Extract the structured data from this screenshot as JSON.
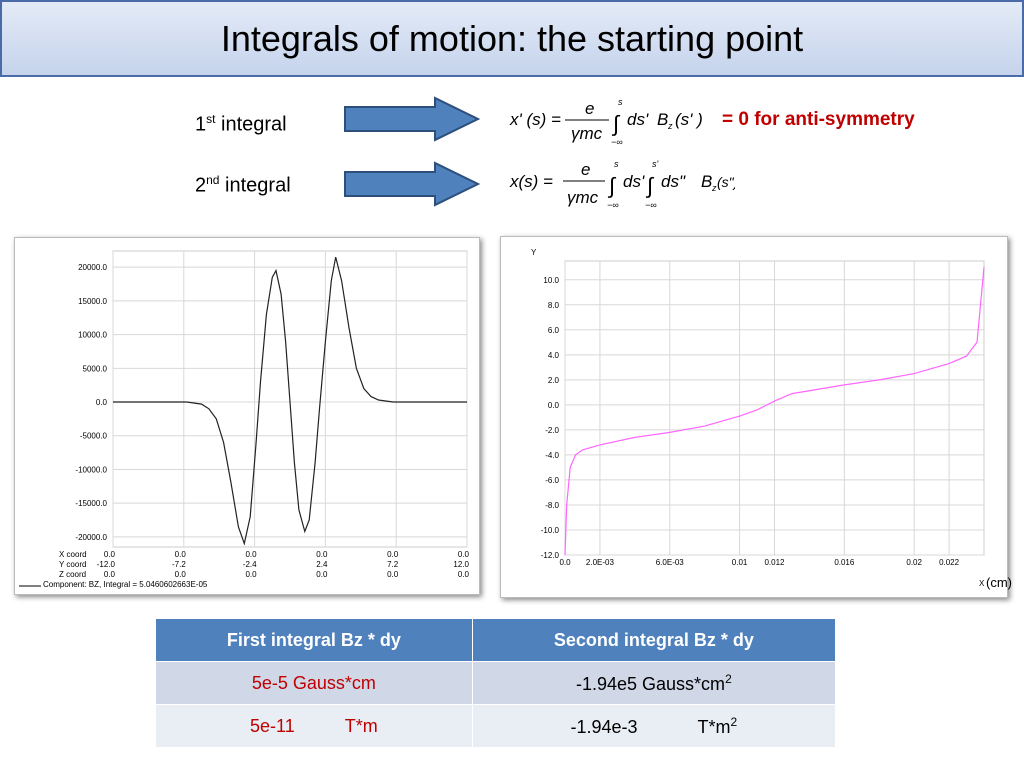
{
  "header": {
    "title": "Integrals of motion: the starting point"
  },
  "integrals": [
    {
      "num": "1",
      "sup": "st",
      "text": " integral"
    },
    {
      "num": "2",
      "sup": "nd",
      "text": " integral"
    }
  ],
  "formulas": [
    {
      "lhs": "x' (s) =",
      "num": "e",
      "den": "γmc",
      "int": "∫",
      "upper": "s",
      "lower": "−∞",
      "diff": "ds'",
      "func": "B",
      "sub": "z",
      "arg": "(s' )"
    },
    {
      "lhs": "x(s) =",
      "num": "e",
      "den": "γmc",
      "int": "∫",
      "upper": "s",
      "lower": "−∞",
      "diff": "ds'",
      "int2": "∫",
      "upper2": "s'",
      "lower2": "−∞",
      "diff2": "ds\"",
      "func": "B",
      "sub": "z",
      "arg": "(s\")"
    }
  ],
  "note": "=  0 for anti-symmetry",
  "chart_data": [
    {
      "type": "line",
      "color": "#222222",
      "grid": true,
      "xlim": [
        -12,
        12
      ],
      "ylim": [
        -21500,
        22400
      ],
      "xticks": [
        {
          "value": -12,
          "label": "-12.0"
        },
        {
          "value": -7.2,
          "label": "-7.2"
        },
        {
          "value": -2.4,
          "label": "-2.4"
        },
        {
          "value": 2.4,
          "label": "2.4"
        },
        {
          "value": 7.2,
          "label": "7.2"
        },
        {
          "value": 12,
          "label": "12.0"
        }
      ],
      "yticks": [
        {
          "value": 20000,
          "label": "20000.0"
        },
        {
          "value": 15000,
          "label": "15000.0"
        },
        {
          "value": 10000,
          "label": "10000.0"
        },
        {
          "value": 5000,
          "label": "5000.0"
        },
        {
          "value": 0,
          "label": "0.0"
        },
        {
          "value": -5000,
          "label": "-5000.0"
        },
        {
          "value": -10000,
          "label": "-10000.0"
        },
        {
          "value": -15000,
          "label": "-15000.0"
        },
        {
          "value": -20000,
          "label": "-20000.0"
        }
      ],
      "x_coord": {
        "label": "X coord",
        "values": [
          "0.0",
          "0.0",
          "0.0",
          "0.0",
          "0.0",
          "0.0"
        ]
      },
      "y_coord_label": "Y coord",
      "z_coord": {
        "label": "Z coord",
        "values": [
          "0.0",
          "0.0",
          "0.0",
          "0.0",
          "0.0",
          "0.0"
        ]
      },
      "caption": "Component: BZ, Integral = 5.0460602663E-05",
      "series": [
        {
          "x": [
            -12,
            -7,
            -6,
            -5.5,
            -5,
            -4.5,
            -4,
            -3.5,
            -3.1,
            -2.7,
            -2.3,
            -2,
            -1.6,
            -1.2,
            -0.95,
            -0.6,
            -0.3,
            0,
            0.3,
            0.6,
            1,
            1.3,
            1.7,
            2,
            2.4,
            2.8,
            3.1,
            3.5,
            4,
            4.5,
            5,
            5.5,
            6,
            7,
            12
          ],
          "values": [
            0,
            0,
            -300,
            -1000,
            -2500,
            -6000,
            -12000,
            -18500,
            -21000,
            -17000,
            -6000,
            3000,
            13000,
            18500,
            19500,
            16000,
            9000,
            0,
            -9000,
            -16000,
            -19200,
            -17500,
            -9000,
            -1000,
            9000,
            18000,
            21500,
            18000,
            11000,
            5000,
            2000,
            800,
            300,
            0,
            0
          ]
        }
      ]
    },
    {
      "type": "line",
      "color": "#ff66ff",
      "grid": true,
      "xlim": [
        0,
        0.024
      ],
      "ylim": [
        -12,
        11.5
      ],
      "y_label": "Y",
      "x_label": "X",
      "x_unit": "(cm)",
      "xticks": [
        {
          "value": 0,
          "label": "0.0"
        },
        {
          "value": 0.002,
          "label": "2.0E-03"
        },
        {
          "value": 0.006,
          "label": "6.0E-03"
        },
        0.01,
        0.012,
        0.016,
        0.02,
        0.022
      ],
      "yticks": [
        {
          "value": 10,
          "label": "10.0"
        },
        {
          "value": 8,
          "label": "8.0"
        },
        {
          "value": 6,
          "label": "6.0"
        },
        {
          "value": 4,
          "label": "4.0"
        },
        {
          "value": 2,
          "label": "2.0"
        },
        {
          "value": 0,
          "label": "0.0"
        },
        {
          "value": -2,
          "label": "-2.0"
        },
        {
          "value": -4,
          "label": "-4.0"
        },
        {
          "value": -6,
          "label": "-6.0"
        },
        {
          "value": -8,
          "label": "-8.0"
        },
        {
          "value": -10,
          "label": "-10.0"
        },
        {
          "value": -12,
          "label": "-12.0"
        }
      ],
      "series": [
        {
          "x": [
            0,
            0.0001,
            0.0003,
            0.0006,
            0.001,
            0.002,
            0.004,
            0.006,
            0.008,
            0.01,
            0.011,
            0.012,
            0.013,
            0.016,
            0.018,
            0.02,
            0.022,
            0.023,
            0.0236,
            0.024
          ],
          "values": [
            -12,
            -8,
            -5,
            -4,
            -3.6,
            -3.2,
            -2.6,
            -2.2,
            -1.7,
            -0.9,
            -0.4,
            0.3,
            0.9,
            1.6,
            2,
            2.5,
            3.3,
            3.9,
            5,
            11
          ]
        }
      ]
    }
  ],
  "table": {
    "header": [
      "First integral Bz * dy",
      "Second integral Bz * dy"
    ],
    "rows": [
      [
        [
          "5e-5 Gauss*cm"
        ],
        [
          "-1.94e5 Gauss*cm",
          "2"
        ]
      ],
      [
        [
          "5e-11",
          "T*m"
        ],
        [
          "-1.94e-3",
          "T*m",
          "2"
        ]
      ]
    ]
  }
}
